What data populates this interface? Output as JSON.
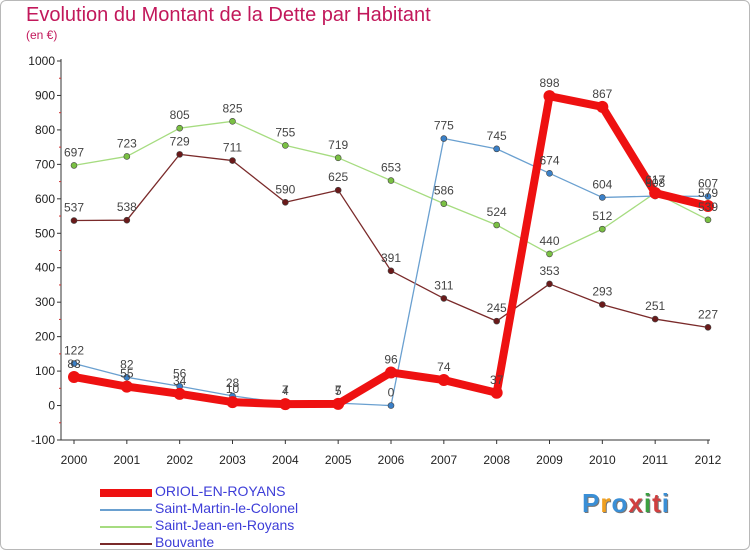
{
  "title": "Evolution du Montant de la Dette par Habitant",
  "subtitle": "(en €)",
  "logo": {
    "text": "Proxiti",
    "colors": [
      "#3a8fd6",
      "#f0a020",
      "#3a8fd6",
      "#d04040",
      "#3aa040",
      "#d04040",
      "#3a8fd6"
    ]
  },
  "chart_data": {
    "type": "line",
    "x": [
      "2000",
      "2001",
      "2002",
      "2003",
      "2004",
      "2005",
      "2006",
      "2007",
      "2008",
      "2009",
      "2010",
      "2011",
      "2012"
    ],
    "ylim": [
      -100,
      1000
    ],
    "yticks": [
      "-100",
      "0",
      "100",
      "200",
      "300",
      "400",
      "500",
      "600",
      "700",
      "800",
      "900",
      "1000"
    ],
    "grid": false,
    "legend_position": "bottom-left",
    "series": [
      {
        "name": "ORIOL-EN-ROYANS",
        "color": "#ee1111",
        "marker": "#ee1111",
        "width": 8,
        "values": [
          83,
          55,
          34,
          10,
          4,
          5,
          96,
          74,
          37,
          898,
          867,
          617,
          579
        ],
        "labels": [
          "83",
          "55",
          "34",
          "10",
          "4",
          "5",
          "96",
          "74",
          "37",
          "898",
          "867",
          "617",
          "579"
        ]
      },
      {
        "name": "Saint-Martin-le-Colonel",
        "color": "#6aa0d0",
        "marker": "#3a80c8",
        "width": 1.3,
        "values": [
          122,
          82,
          56,
          28,
          7,
          7,
          0,
          775,
          745,
          674,
          604,
          608,
          607
        ],
        "labels": [
          "122",
          "82",
          "56",
          "28",
          "7",
          "7",
          "0",
          "775",
          "745",
          "674",
          "604",
          "608",
          "607"
        ]
      },
      {
        "name": "Saint-Jean-en-Royans",
        "color": "#a6dc80",
        "marker": "#7ac043",
        "width": 1.3,
        "values": [
          697,
          723,
          805,
          825,
          755,
          719,
          653,
          586,
          524,
          440,
          512,
          617,
          539
        ],
        "labels": [
          "697",
          "723",
          "805",
          "825",
          "755",
          "719",
          "653",
          "586",
          "524",
          "440",
          "512",
          "617",
          "539"
        ]
      },
      {
        "name": "Bouvante",
        "color": "#7a2a2a",
        "marker": "#6a1a1a",
        "width": 1.3,
        "values": [
          537,
          538,
          729,
          711,
          590,
          625,
          391,
          311,
          245,
          353,
          293,
          251,
          227
        ],
        "labels": [
          "537",
          "538",
          "729",
          "711",
          "590",
          "625",
          "391",
          "311",
          "245",
          "353",
          "293",
          "251",
          "227"
        ]
      }
    ]
  }
}
